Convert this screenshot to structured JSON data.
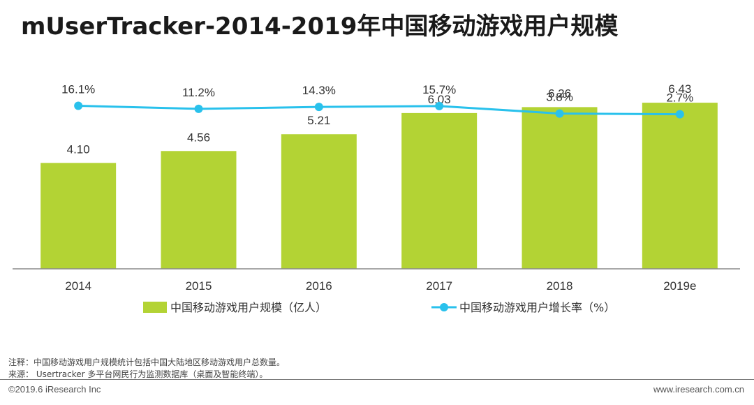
{
  "title": "mUserTracker-2014-2019年中国移动游戏用户规模",
  "chart_data": {
    "type": "bar",
    "categories": [
      "2014",
      "2015",
      "2016",
      "2017",
      "2018",
      "2019e"
    ],
    "series": [
      {
        "name": "中国移动游戏用户规模（亿人）",
        "type": "bar",
        "values": [
          4.1,
          4.56,
          5.21,
          6.03,
          6.26,
          6.43
        ],
        "labels": [
          "4.10",
          "4.56",
          "5.21",
          "6.03",
          "6.26",
          "6.43"
        ],
        "color": "#b3d334"
      },
      {
        "name": "中国移动游戏用户增长率（%）",
        "type": "line",
        "values": [
          16.1,
          11.2,
          14.3,
          15.7,
          3.8,
          2.7
        ],
        "labels": [
          "16.1%",
          "11.2%",
          "14.3%",
          "15.7%",
          "3.8%",
          "2.7%"
        ],
        "color": "#29c1ec"
      }
    ],
    "legend_position": "bottom",
    "grid": false
  },
  "notes": [
    "注释：中国移动游戏用户规模统计包括中国大陆地区移动游戏用户总数量。",
    "来源：  Usertracker 多平台网民行为监测数据库（桌面及智能终端）。"
  ],
  "copyright": "©2019.6 iResearch Inc",
  "site": "www.iresearch.com.cn"
}
